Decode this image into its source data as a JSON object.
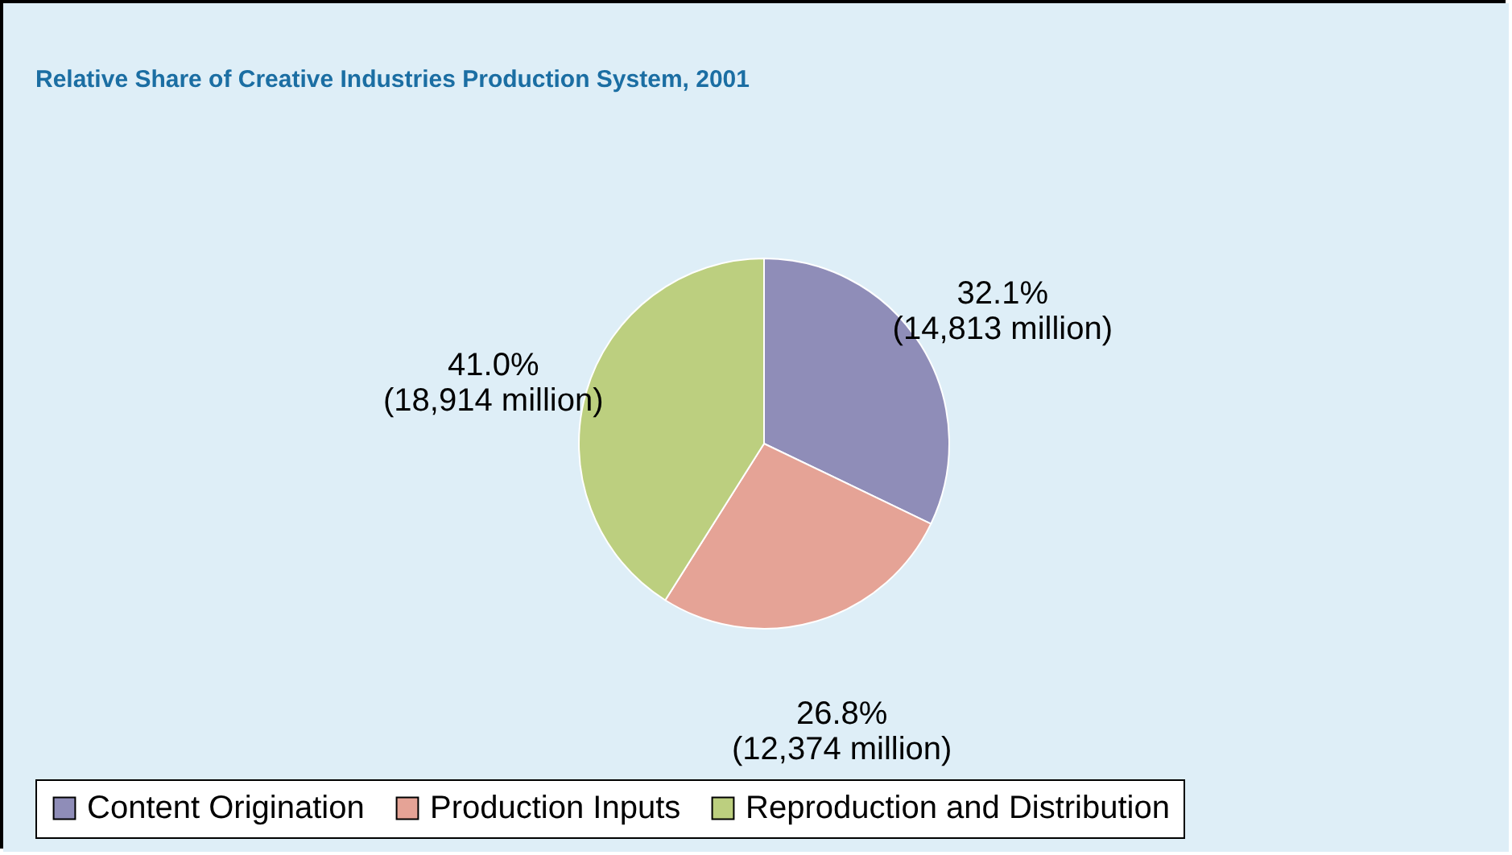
{
  "chart_data": {
    "type": "pie",
    "title": "Relative Share of Creative Industries Production System, 2001",
    "categories": [
      "Content Origination",
      "Production Inputs",
      "Reproduction and Distribution"
    ],
    "values": [
      32.1,
      26.8,
      41.0
    ],
    "colors": [
      "#8f8db8",
      "#e5a396",
      "#bccf7f"
    ],
    "value_labels": [
      "32.1%\n(14,813 million)",
      "26.8%\n(12,374 million)",
      "41.0%\n(18,914 million)"
    ],
    "legend": "bottom"
  }
}
